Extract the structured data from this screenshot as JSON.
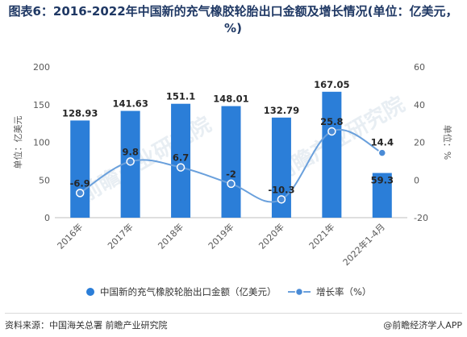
{
  "title": "图表6：2016-2022年中国新的充气橡胶轮胎出口金额及增长情况(单位：亿美元，%)",
  "source": "资料来源：中国海关总署 前瞻产业研究院",
  "brand": "@前瞻经济学人APP",
  "watermark": "前瞻产业研究院",
  "colors": {
    "bar": "#2b7ed8",
    "line": "#6aa0dc",
    "marker": "#4a8bd6",
    "axis_text": "#595959",
    "title": "#1f3864"
  },
  "chart_data": {
    "type": "bar",
    "categories": [
      "2016年",
      "2017年",
      "2018年",
      "2019年",
      "2020年",
      "2021年",
      "2022年1-4月"
    ],
    "series": [
      {
        "name": "中国新的充气橡胶轮胎出口金额（亿美元）",
        "type": "bar",
        "axis": "left",
        "values": [
          128.93,
          141.63,
          151.1,
          148.01,
          132.79,
          167.05,
          59.3
        ],
        "labels": [
          "128.93",
          "141.63",
          "151.1",
          "148.01",
          "132.79",
          "167.05",
          "59.3"
        ]
      },
      {
        "name": "增长率（%）",
        "type": "line",
        "axis": "right",
        "values": [
          -6.9,
          9.8,
          6.7,
          -2,
          -10.3,
          25.8,
          14.4
        ],
        "labels": [
          "-6.9",
          "9.8",
          "6.7",
          "-2",
          "-10.3",
          "25.8",
          "14.4"
        ]
      }
    ],
    "ylabel_left": "单位：亿美元",
    "ylabel_right": "单位：%",
    "ylim_left": [
      0,
      200
    ],
    "yticks_left": [
      "0",
      "50",
      "100",
      "150",
      "200"
    ],
    "ylim_right": [
      -20,
      60
    ],
    "yticks_right": [
      "-20",
      "0",
      "20",
      "40",
      "60"
    ],
    "grid": false,
    "legend_position": "bottom"
  }
}
